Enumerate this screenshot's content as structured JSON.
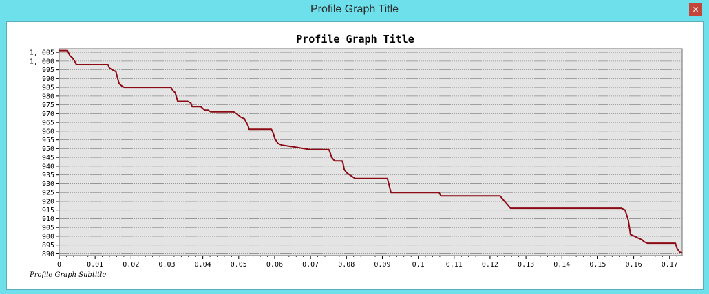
{
  "window": {
    "title": "Profile Graph Title",
    "close_glyph": "✕"
  },
  "colors": {
    "frame": "#6ee0ec",
    "plot_bg": "#e4e4e4",
    "line": "#8b0a14",
    "grid": "#8a8a8a"
  },
  "chart_data": {
    "type": "line",
    "title": "Profile Graph Title",
    "subtitle": "Profile Graph Subtitle",
    "xlabel": "",
    "ylabel": "",
    "xlim": [
      0,
      0.1735
    ],
    "ylim": [
      889,
      1007
    ],
    "grid": "horizontal-dashed",
    "legend": "none",
    "x_ticks": [
      0,
      0.01,
      0.02,
      0.03,
      0.04,
      0.05,
      0.06,
      0.07,
      0.08,
      0.09,
      0.1,
      0.11,
      0.12,
      0.13,
      0.14,
      0.15,
      0.16,
      0.17
    ],
    "x_tick_labels": [
      "0",
      "0.01",
      "0.02",
      "0.03",
      "0.04",
      "0.05",
      "0.06",
      "0.07",
      "0.08",
      "0.09",
      "0.1",
      "0.11",
      "0.12",
      "0.13",
      "0.14",
      "0.15",
      "0.16",
      "0.17"
    ],
    "y_ticks": [
      890,
      895,
      900,
      905,
      910,
      915,
      920,
      925,
      930,
      935,
      940,
      945,
      950,
      955,
      960,
      965,
      970,
      975,
      980,
      985,
      990,
      995,
      1000,
      1005
    ],
    "y_tick_labels": [
      "890",
      "895",
      "900",
      "905",
      "910",
      "915",
      "920",
      "925",
      "930",
      "935",
      "940",
      "945",
      "950",
      "955",
      "960",
      "965",
      "970",
      "975",
      "980",
      "985",
      "990",
      "995",
      "1, 000",
      "1, 005"
    ],
    "series": [
      {
        "x": [
          0,
          0.0023,
          0.003,
          0.0036,
          0.0043,
          0.0048,
          0.0136,
          0.014,
          0.0148,
          0.0158,
          0.0163,
          0.0167,
          0.0173,
          0.0181,
          0.0196,
          0.0311,
          0.0317,
          0.0323,
          0.033,
          0.0336,
          0.0358,
          0.0367,
          0.037,
          0.0394,
          0.0405,
          0.0415,
          0.0422,
          0.0486,
          0.0494,
          0.0505,
          0.0516,
          0.0526,
          0.0529,
          0.0591,
          0.0596,
          0.06,
          0.0609,
          0.062,
          0.0652,
          0.0699,
          0.0751,
          0.0754,
          0.0759,
          0.0767,
          0.0788,
          0.079,
          0.0794,
          0.0802,
          0.0824,
          0.0914,
          0.0924,
          0.1058,
          0.1063,
          0.1228,
          0.1257,
          0.1566,
          0.1576,
          0.1585,
          0.1591,
          0.1602,
          0.1612,
          0.1623,
          0.1628,
          0.1638,
          0.164,
          0.1693,
          0.1716,
          0.1721,
          0.1728,
          0.1735
        ],
        "y": [
          1006,
          1006,
          1003,
          1002,
          1000,
          998,
          998,
          996,
          995,
          994,
          990,
          987,
          986,
          985,
          985,
          985,
          983,
          982,
          977,
          977,
          977,
          976,
          974,
          974,
          972,
          972,
          971,
          971,
          970,
          968,
          967,
          963,
          961,
          961,
          959,
          956,
          953,
          952,
          951,
          949.5,
          949.5,
          948,
          945,
          943,
          943,
          942,
          938,
          936,
          933,
          933,
          925,
          925,
          923,
          923,
          916,
          916,
          915,
          909,
          901,
          900,
          899,
          898,
          897,
          896,
          896,
          896,
          896,
          893,
          891,
          890.5
        ]
      }
    ]
  }
}
